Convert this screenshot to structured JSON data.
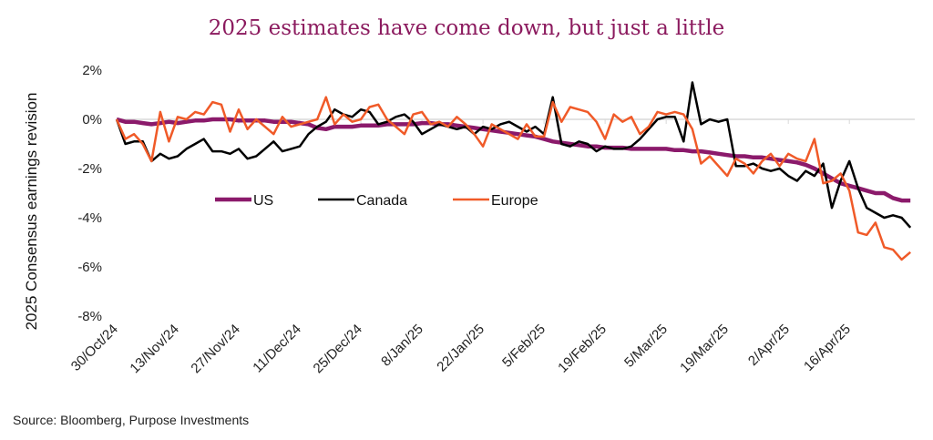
{
  "chart_data": {
    "type": "line",
    "title": "2025 estimates have come down, but just a little",
    "xlabel": "",
    "ylabel": "2025 Consensus earnings revision",
    "source": "Source: Bloomberg, Purpose Investments",
    "ylim": [
      -8,
      2
    ],
    "yticks": [
      2,
      0,
      -2,
      -4,
      -6,
      -8
    ],
    "ytick_labels": [
      "2%",
      "0%",
      "-2%",
      "-4%",
      "-6%",
      "-8%"
    ],
    "xlim_days": [
      0,
      183
    ],
    "xticks": [
      {
        "day": 0,
        "label": "30/Oct/24"
      },
      {
        "day": 14,
        "label": "13/Nov/24"
      },
      {
        "day": 28,
        "label": "27/Nov/24"
      },
      {
        "day": 42,
        "label": "11/Dec/24"
      },
      {
        "day": 56,
        "label": "25/Dec/24"
      },
      {
        "day": 70,
        "label": "8/Jan/25"
      },
      {
        "day": 84,
        "label": "22/Jan/25"
      },
      {
        "day": 98,
        "label": "5/Feb/25"
      },
      {
        "day": 112,
        "label": "19/Feb/25"
      },
      {
        "day": 126,
        "label": "5/Mar/25"
      },
      {
        "day": 140,
        "label": "19/Mar/25"
      },
      {
        "day": 154,
        "label": "2/Apr/25"
      },
      {
        "day": 168,
        "label": "16/Apr/25"
      }
    ],
    "grid": false,
    "zero_line": true,
    "legend": {
      "placement": "center-left"
    },
    "x_days": [
      0,
      2,
      4,
      6,
      8,
      10,
      12,
      14,
      16,
      18,
      20,
      22,
      24,
      26,
      28,
      30,
      32,
      34,
      36,
      38,
      40,
      42,
      44,
      46,
      48,
      50,
      52,
      54,
      56,
      58,
      60,
      62,
      64,
      66,
      68,
      70,
      72,
      74,
      76,
      78,
      80,
      82,
      84,
      86,
      88,
      90,
      92,
      94,
      96,
      98,
      100,
      102,
      104,
      106,
      108,
      110,
      112,
      114,
      116,
      118,
      120,
      122,
      124,
      126,
      128,
      130,
      132,
      134,
      136,
      138,
      140,
      142,
      144,
      146,
      148,
      150,
      152,
      154,
      156,
      158,
      160,
      162,
      164,
      166,
      168,
      170,
      172,
      174,
      176,
      178,
      180,
      182
    ],
    "series": [
      {
        "name": "US",
        "color": "#8b1a6b",
        "values": [
          0,
          -0.1,
          -0.1,
          -0.15,
          -0.2,
          -0.15,
          -0.1,
          -0.15,
          -0.1,
          -0.05,
          -0.05,
          0,
          0,
          0,
          -0.05,
          -0.05,
          -0.05,
          -0.05,
          -0.1,
          -0.1,
          -0.1,
          -0.15,
          -0.2,
          -0.35,
          -0.4,
          -0.3,
          -0.3,
          -0.3,
          -0.25,
          -0.25,
          -0.25,
          -0.2,
          -0.2,
          -0.2,
          -0.2,
          -0.15,
          -0.15,
          -0.2,
          -0.2,
          -0.25,
          -0.3,
          -0.35,
          -0.4,
          -0.45,
          -0.5,
          -0.55,
          -0.6,
          -0.65,
          -0.7,
          -0.8,
          -0.9,
          -0.95,
          -1.0,
          -1.05,
          -1.1,
          -1.1,
          -1.15,
          -1.15,
          -1.15,
          -1.2,
          -1.2,
          -1.2,
          -1.2,
          -1.2,
          -1.25,
          -1.25,
          -1.3,
          -1.3,
          -1.35,
          -1.4,
          -1.45,
          -1.5,
          -1.5,
          -1.55,
          -1.55,
          -1.6,
          -1.65,
          -1.7,
          -1.75,
          -1.85,
          -2.0,
          -2.2,
          -2.4,
          -2.6,
          -2.7,
          -2.8,
          -2.9,
          -3.0,
          -3.0,
          -3.2,
          -3.3,
          -3.3,
          -3.3,
          -3.3
        ]
      },
      {
        "name": "Canada",
        "color": "#000000",
        "values": [
          0,
          -1.0,
          -0.9,
          -0.9,
          -1.7,
          -1.4,
          -1.6,
          -1.5,
          -1.2,
          -1.0,
          -0.8,
          -1.3,
          -1.3,
          -1.4,
          -1.2,
          -1.6,
          -1.5,
          -1.2,
          -0.9,
          -1.3,
          -1.2,
          -1.1,
          -0.6,
          -0.3,
          -0.1,
          0.4,
          0.2,
          0.1,
          0.4,
          0.3,
          -0.2,
          -0.1,
          0.1,
          0.2,
          -0.1,
          -0.6,
          -0.4,
          -0.2,
          -0.3,
          -0.4,
          -0.3,
          -0.6,
          -0.3,
          -0.4,
          -0.2,
          -0.1,
          -0.3,
          -0.5,
          -0.3,
          -0.6,
          0.9,
          -1.0,
          -1.1,
          -0.9,
          -1.0,
          -1.3,
          -1.1,
          -1.2,
          -1.2,
          -1.1,
          -0.8,
          -0.4,
          0.0,
          0.1,
          0.1,
          -0.9,
          1.5,
          -0.2,
          0.0,
          -0.1,
          0.0,
          -1.9,
          -1.9,
          -1.8,
          -2.0,
          -2.1,
          -2.0,
          -2.3,
          -2.5,
          -2.1,
          -2.3,
          -1.8,
          -3.6,
          -2.5,
          -1.7,
          -2.8,
          -3.6,
          -3.8,
          -4.0,
          -3.9,
          -4.0,
          -4.4,
          -4.1,
          -3.5
        ]
      },
      {
        "name": "Europe",
        "color": "#f05a28",
        "values": [
          0,
          -0.8,
          -0.6,
          -1.0,
          -1.7,
          0.3,
          -0.9,
          0.1,
          0.0,
          0.3,
          0.2,
          0.7,
          0.6,
          -0.5,
          0.4,
          -0.4,
          0.0,
          -0.3,
          -0.6,
          0.1,
          -0.3,
          -0.2,
          -0.1,
          0.0,
          0.9,
          -0.2,
          0.2,
          -0.1,
          0.0,
          0.5,
          0.6,
          0.0,
          -0.3,
          -0.6,
          0.2,
          0.3,
          -0.2,
          -0.1,
          -0.3,
          0.1,
          -0.2,
          -0.6,
          -1.1,
          -0.2,
          -0.4,
          -0.6,
          -0.8,
          -0.2,
          -0.7,
          -0.7,
          0.7,
          -0.1,
          0.5,
          0.4,
          0.3,
          -0.1,
          -0.8,
          0.2,
          -0.1,
          0.1,
          -0.6,
          -0.3,
          0.3,
          0.2,
          0.3,
          0.2,
          -0.4,
          -1.8,
          -1.5,
          -1.9,
          -2.3,
          -1.6,
          -1.8,
          -2.2,
          -1.7,
          -1.4,
          -1.9,
          -1.4,
          -1.6,
          -1.7,
          -0.8,
          -2.6,
          -2.5,
          -2.2,
          -2.9,
          -4.6,
          -4.7,
          -4.2,
          -5.2,
          -5.3,
          -5.7,
          -5.4,
          -5.8,
          -5.6
        ]
      }
    ]
  }
}
